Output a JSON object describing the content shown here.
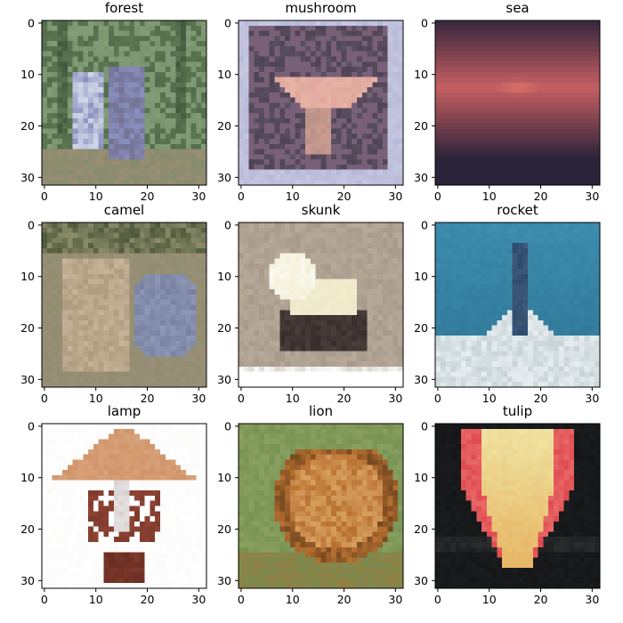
{
  "chart_data": [
    {
      "type": "image",
      "title": "forest",
      "x_ticks": [
        0,
        10,
        20,
        30
      ],
      "y_ticks": [
        0,
        10,
        20,
        30
      ],
      "xlim": [
        -0.5,
        31.5
      ],
      "ylim": [
        31.5,
        -0.5
      ],
      "palette": {
        "base": "#6f8a63",
        "dark": "#3f5a3c",
        "light": "#9fb895",
        "accent": "#8a90c0",
        "accent2": "#d0d8e8",
        "ground": "#9a8d74"
      },
      "pattern": "trees",
      "image_size": [
        32,
        32
      ]
    },
    {
      "type": "image",
      "title": "mushroom",
      "x_ticks": [
        0,
        10,
        20,
        30
      ],
      "y_ticks": [
        0,
        10,
        20,
        30
      ],
      "xlim": [
        -0.5,
        31.5
      ],
      "ylim": [
        31.5,
        -0.5
      ],
      "palette": {
        "base": "#6e6378",
        "dark": "#3f3442",
        "light": "#c6c8e0",
        "accent": "#e0a79c",
        "accent2": "#b89287",
        "ground": "#7a5f78"
      },
      "pattern": "mushroom",
      "image_size": [
        32,
        32
      ]
    },
    {
      "type": "image",
      "title": "sea",
      "x_ticks": [
        0,
        10,
        20,
        30
      ],
      "y_ticks": [
        0,
        10,
        20,
        30
      ],
      "xlim": [
        -0.5,
        31.5
      ],
      "ylim": [
        31.5,
        -0.5
      ],
      "palette": {
        "base": "#5c4a63",
        "dark": "#2a2238",
        "light": "#c65f62",
        "accent": "#e07a6a",
        "accent2": "#8a5a6a",
        "ground": "#3a2d45"
      },
      "pattern": "sunset",
      "image_size": [
        32,
        32
      ]
    },
    {
      "type": "image",
      "title": "camel",
      "x_ticks": [
        0,
        10,
        20,
        30
      ],
      "y_ticks": [
        0,
        10,
        20,
        30
      ],
      "xlim": [
        -0.5,
        31.5
      ],
      "ylim": [
        31.5,
        -0.5
      ],
      "palette": {
        "base": "#8b8b6a",
        "dark": "#4f5a3c",
        "light": "#c5b49a",
        "accent": "#8d98b6",
        "accent2": "#b09a7d",
        "ground": "#9b8f7a"
      },
      "pattern": "camel",
      "image_size": [
        32,
        32
      ]
    },
    {
      "type": "image",
      "title": "skunk",
      "x_ticks": [
        0,
        10,
        20,
        30
      ],
      "y_ticks": [
        0,
        10,
        20,
        30
      ],
      "xlim": [
        -0.5,
        31.5
      ],
      "ylim": [
        31.5,
        -0.5
      ],
      "palette": {
        "base": "#b8aa98",
        "dark": "#4a3e3a",
        "light": "#f4f0d8",
        "accent": "#efe8c8",
        "accent2": "#9c8e82",
        "ground": "#a89a88"
      },
      "pattern": "skunk",
      "image_size": [
        32,
        32
      ]
    },
    {
      "type": "image",
      "title": "rocket",
      "x_ticks": [
        0,
        10,
        20,
        30
      ],
      "y_ticks": [
        0,
        10,
        20,
        30
      ],
      "xlim": [
        -0.5,
        31.5
      ],
      "ylim": [
        31.5,
        -0.5
      ],
      "palette": {
        "base": "#3f8fb0",
        "dark": "#1f5f80",
        "light": "#e8eef0",
        "accent": "#2a4a6a",
        "accent2": "#b8c8cc",
        "ground": "#8a8a7a"
      },
      "pattern": "rocket",
      "image_size": [
        32,
        32
      ]
    },
    {
      "type": "image",
      "title": "lamp",
      "x_ticks": [
        0,
        10,
        20,
        30
      ],
      "y_ticks": [
        0,
        10,
        20,
        30
      ],
      "xlim": [
        -0.5,
        31.5
      ],
      "ylim": [
        31.5,
        -0.5
      ],
      "palette": {
        "base": "#ffffff",
        "dark": "#6a2e22",
        "light": "#d9a27a",
        "accent": "#c7865a",
        "accent2": "#9a4a3a",
        "ground": "#f4f0ee"
      },
      "pattern": "lamp",
      "image_size": [
        32,
        32
      ]
    },
    {
      "type": "image",
      "title": "lion",
      "x_ticks": [
        0,
        10,
        20,
        30
      ],
      "y_ticks": [
        0,
        10,
        20,
        30
      ],
      "xlim": [
        -0.5,
        31.5
      ],
      "ylim": [
        31.5,
        -0.5
      ],
      "palette": {
        "base": "#8aa060",
        "dark": "#5a3a1a",
        "light": "#d8a060",
        "accent": "#b87030",
        "accent2": "#6a8a4a",
        "ground": "#7a8a50"
      },
      "pattern": "lion",
      "image_size": [
        32,
        32
      ]
    },
    {
      "type": "image",
      "title": "tulip",
      "x_ticks": [
        0,
        10,
        20,
        30
      ],
      "y_ticks": [
        0,
        10,
        20,
        30
      ],
      "xlim": [
        -0.5,
        31.5
      ],
      "ylim": [
        31.5,
        -0.5
      ],
      "palette": {
        "base": "#1a1c1e",
        "dark": "#0e1012",
        "light": "#f0e8a8",
        "accent": "#e04a50",
        "accent2": "#e8b868",
        "ground": "#2a2e2e"
      },
      "pattern": "tulip",
      "image_size": [
        32,
        32
      ]
    }
  ]
}
